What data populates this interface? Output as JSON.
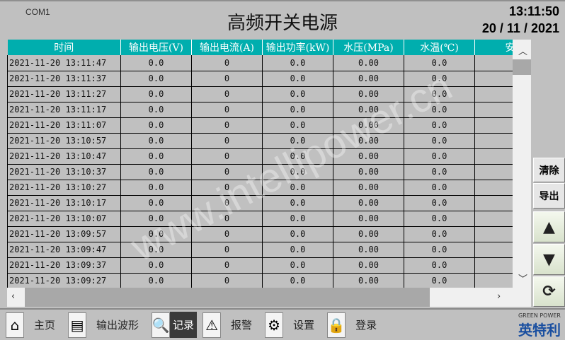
{
  "header": {
    "port": "COM1",
    "title": "高频开关电源",
    "time": "13:11:50",
    "date": "20 / 11 / 2021"
  },
  "table": {
    "columns": [
      "时间",
      "输出电压(V)",
      "输出电流(A)",
      "输出功率(kW)",
      "水压(MPa)",
      "水温(℃)",
      "安"
    ],
    "rows": [
      [
        "2021-11-20 13:11:47",
        "0.0",
        "0",
        "0.0",
        "0.00",
        "0.0",
        ""
      ],
      [
        "2021-11-20 13:11:37",
        "0.0",
        "0",
        "0.0",
        "0.00",
        "0.0",
        ""
      ],
      [
        "2021-11-20 13:11:27",
        "0.0",
        "0",
        "0.0",
        "0.00",
        "0.0",
        ""
      ],
      [
        "2021-11-20 13:11:17",
        "0.0",
        "0",
        "0.0",
        "0.00",
        "0.0",
        ""
      ],
      [
        "2021-11-20 13:11:07",
        "0.0",
        "0",
        "0.0",
        "0.00",
        "0.0",
        ""
      ],
      [
        "2021-11-20 13:10:57",
        "0.0",
        "0",
        "0.0",
        "0.00",
        "0.0",
        ""
      ],
      [
        "2021-11-20 13:10:47",
        "0.0",
        "0",
        "0.0",
        "0.00",
        "0.0",
        ""
      ],
      [
        "2021-11-20 13:10:37",
        "0.0",
        "0",
        "0.0",
        "0.00",
        "0.0",
        ""
      ],
      [
        "2021-11-20 13:10:27",
        "0.0",
        "0",
        "0.0",
        "0.00",
        "0.0",
        ""
      ],
      [
        "2021-11-20 13:10:17",
        "0.0",
        "0",
        "0.0",
        "0.00",
        "0.0",
        ""
      ],
      [
        "2021-11-20 13:10:07",
        "0.0",
        "0",
        "0.0",
        "0.00",
        "0.0",
        ""
      ],
      [
        "2021-11-20 13:09:57",
        "0.0",
        "0",
        "0.0",
        "0.00",
        "0.0",
        ""
      ],
      [
        "2021-11-20 13:09:47",
        "0.0",
        "0",
        "0.0",
        "0.00",
        "0.0",
        ""
      ],
      [
        "2021-11-20 13:09:37",
        "0.0",
        "0",
        "0.0",
        "0.00",
        "0.0",
        ""
      ],
      [
        "2021-11-20 13:09:27",
        "0.0",
        "0",
        "0.0",
        "0.00",
        "0.0",
        ""
      ]
    ]
  },
  "side": {
    "clear": "清除",
    "export": "导出"
  },
  "nav": [
    {
      "label": "主页",
      "icon": "home-icon"
    },
    {
      "label": "输出波形",
      "icon": "monitor-icon"
    },
    {
      "label": "记录",
      "icon": "search-icon",
      "active": true
    },
    {
      "label": "报警",
      "icon": "warning-icon"
    },
    {
      "label": "设置",
      "icon": "gear-icon"
    },
    {
      "label": "登录",
      "icon": "lock-icon"
    }
  ],
  "logo": {
    "en": "GREEN POWER",
    "cn": "英特利"
  },
  "watermark": "www.intellipower.cn",
  "colors": {
    "header_bg": "#00aeae",
    "active_nav": "#3a3a3a"
  }
}
